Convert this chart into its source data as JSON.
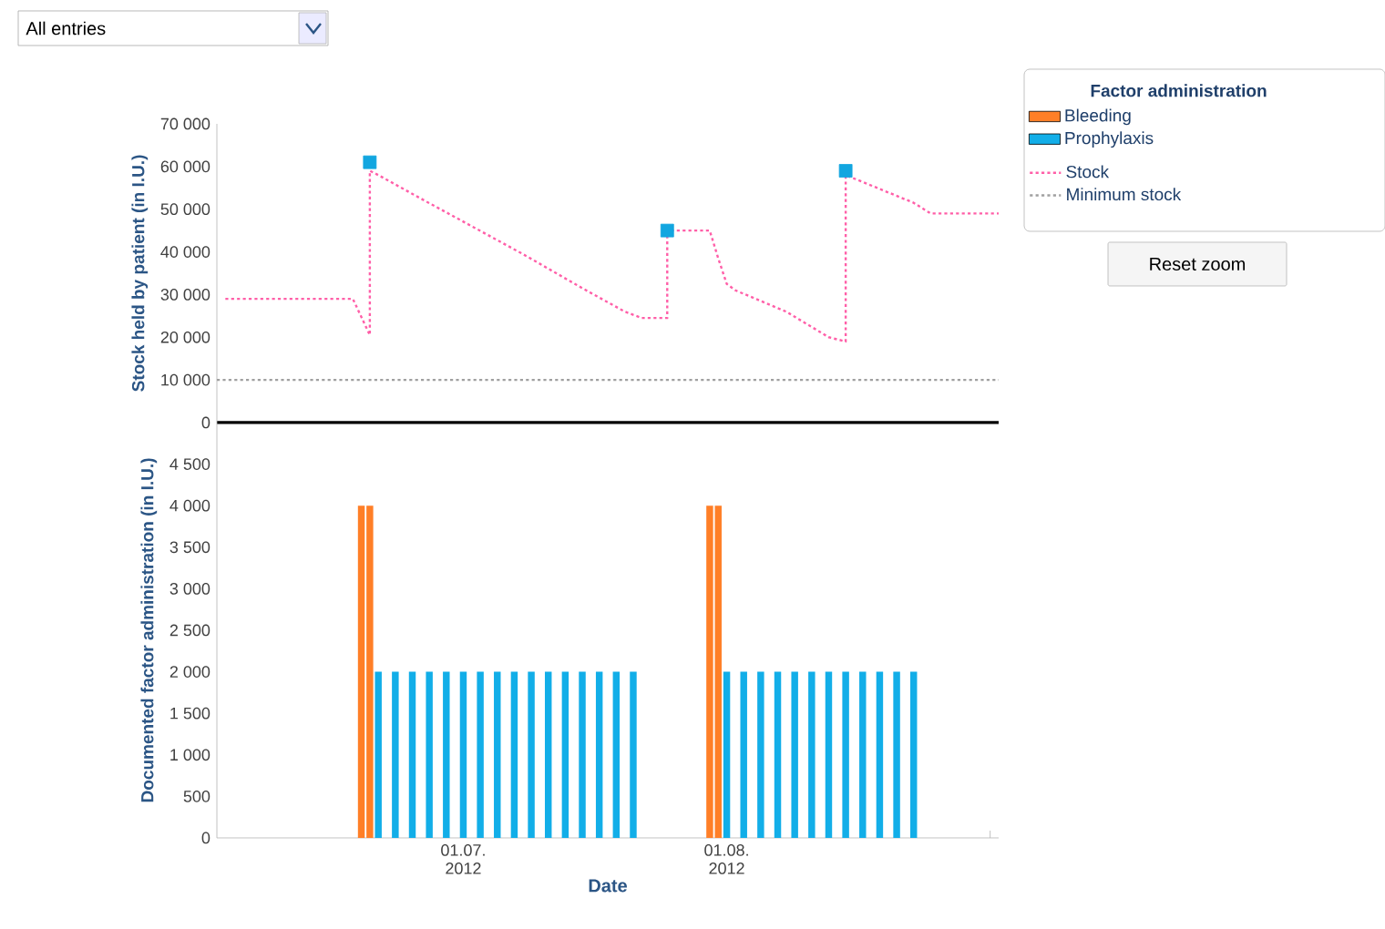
{
  "chart_data": [
    {
      "type": "line",
      "ylabel": "Stock held by patient (in I.U.)",
      "legend_title": "Factor administration",
      "legend": "right",
      "tick_labels": "y",
      "marker": "none",
      "line_style": "dotted",
      "xlim": [
        "2012-06-02",
        "2012-09-02"
      ],
      "ylim": [
        0,
        70000
      ],
      "yticks": [
        0,
        {
          "value": 10000,
          "label": "10 000"
        },
        {
          "value": 20000,
          "label": "20 000"
        },
        {
          "value": 30000,
          "label": "30 000"
        },
        {
          "value": 40000,
          "label": "40 000"
        },
        {
          "value": 50000,
          "label": "50 000"
        },
        {
          "value": 60000,
          "label": "60 000"
        },
        {
          "value": 70000,
          "label": "70 000"
        }
      ],
      "annotations": [
        "All entries",
        "Reset zoom"
      ],
      "series": [
        {
          "name": "Stock",
          "color": "#ff5fa8",
          "x": [
            "2012-06-03",
            "2012-06-18",
            "2012-06-20",
            "2012-06-20",
            "2012-06-21",
            "2012-06-26",
            "2012-07-08",
            "2012-07-15",
            "2012-07-20",
            "2012-07-22",
            "2012-07-25",
            "2012-07-25",
            "2012-07-30",
            "2012-07-31",
            "2012-08-01",
            "2012-08-02",
            "2012-08-08",
            "2012-08-13",
            "2012-08-15",
            "2012-08-15",
            "2012-08-23",
            "2012-08-25",
            "2012-09-02"
          ],
          "values": [
            29000,
            29000,
            20500,
            59000,
            58000,
            52500,
            39500,
            31500,
            26000,
            24500,
            24500,
            45000,
            45000,
            38500,
            32500,
            31000,
            26000,
            20000,
            19000,
            58000,
            51500,
            49000,
            49000
          ]
        },
        {
          "name": "Minimum stock",
          "color": "#a0a0a0",
          "x": [
            "2012-06-02",
            "2012-09-02"
          ],
          "values": [
            10000,
            10000
          ]
        },
        {
          "type": "scatter",
          "marker": "square",
          "color": "#12a6e0",
          "x": [
            "2012-06-20",
            "2012-07-25",
            "2012-08-15"
          ],
          "values": [
            61000,
            45000,
            59000
          ]
        }
      ]
    },
    {
      "type": "bar",
      "xlabel": "Date",
      "ylabel": "Documented factor administration (in I.U.)",
      "legend": "right",
      "xlim": [
        "2012-06-02",
        "2012-09-02"
      ],
      "ylim": [
        0,
        5000
      ],
      "xticks": [
        {
          "value": "2012-07-01",
          "label": "01.07. 2012"
        },
        {
          "value": "2012-08-01",
          "label": "01.08. 2012"
        },
        {
          "value": "2012-09-01",
          "label": null
        }
      ],
      "yticks": [
        0,
        500,
        {
          "value": 1000,
          "label": "1 000"
        },
        {
          "value": 1500,
          "label": "1 500"
        },
        {
          "value": 2000,
          "label": "2 000"
        },
        {
          "value": 2500,
          "label": "2 500"
        },
        {
          "value": 3000,
          "label": "3 000"
        },
        {
          "value": 3500,
          "label": "3 500"
        },
        {
          "value": 4000,
          "label": "4 000"
        },
        {
          "value": 4500,
          "label": "4 500"
        }
      ],
      "series": [
        {
          "name": "Bleeding",
          "color": "#ff7f27",
          "x": [
            "2012-06-19",
            "2012-06-20",
            "2012-07-30",
            "2012-07-31"
          ],
          "values": [
            4000,
            4000,
            4000,
            4000
          ]
        },
        {
          "name": "Prophylaxis",
          "color": "#12aee8",
          "x": [
            "2012-06-21",
            "2012-06-23",
            "2012-06-25",
            "2012-06-27",
            "2012-06-29",
            "2012-07-01",
            "2012-07-03",
            "2012-07-05",
            "2012-07-07",
            "2012-07-09",
            "2012-07-11",
            "2012-07-13",
            "2012-07-15",
            "2012-07-17",
            "2012-07-19",
            "2012-07-21",
            "2012-08-01",
            "2012-08-03",
            "2012-08-05",
            "2012-08-07",
            "2012-08-09",
            "2012-08-11",
            "2012-08-13",
            "2012-08-15",
            "2012-08-17",
            "2012-08-19",
            "2012-08-21",
            "2012-08-23"
          ],
          "values": [
            2000,
            2000,
            2000,
            2000,
            2000,
            2000,
            2000,
            2000,
            2000,
            2000,
            2000,
            2000,
            2000,
            2000,
            2000,
            2000,
            2000,
            2000,
            2000,
            2000,
            2000,
            2000,
            2000,
            2000,
            2000,
            2000,
            2000,
            2000
          ]
        }
      ]
    }
  ]
}
